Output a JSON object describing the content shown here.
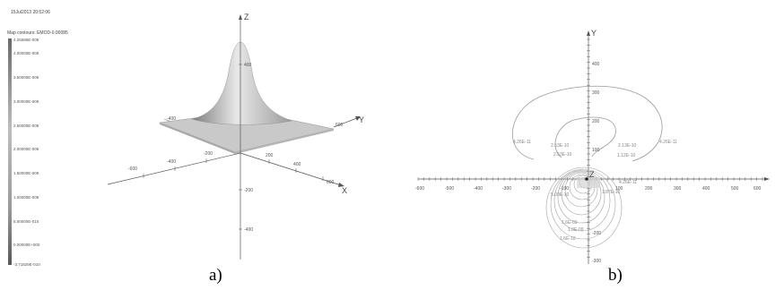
{
  "timestamp": "15Jul2013 20:52:06",
  "legend": {
    "title": "Map contours: EMOD-0.00085",
    "labels": [
      "4.25686E-009",
      "4.00000E-009",
      "3.50000E-009",
      "3.00000E-009",
      "2.50000E-009",
      "2.00000E-009",
      "1.50000E-009",
      "1.00000E-009",
      "5.00000E-010",
      "0.00000E+000",
      "-3.71829E-010"
    ]
  },
  "panel_a": {
    "caption": "a)",
    "axis_x": "X",
    "axis_y": "Y",
    "axis_z": "Z",
    "x_ticks": [
      "200",
      "400",
      "600"
    ],
    "neg_x_ticks": [
      "-200",
      "-400",
      "-600"
    ],
    "y_ticks": [
      "600"
    ],
    "neg_y_ticks": [
      "-200",
      "-400"
    ],
    "z_ticks": [
      "400"
    ],
    "neg_z_ticks": [
      "-200",
      "-400"
    ]
  },
  "panel_b": {
    "caption": "b)",
    "axis_y": "Y",
    "axis_z": "Z",
    "x_ticks": [
      "-600",
      "-500",
      "-400",
      "-300",
      "-200",
      "-100",
      "100",
      "200",
      "300",
      "400",
      "500",
      "600"
    ],
    "y_ticks": [
      "400",
      "300",
      "200",
      "100"
    ],
    "neg_y_ticks": [
      "-200",
      "-300"
    ],
    "contour_labels": [
      "4.26E-11",
      "2.53E-10",
      "4.26E-11",
      "2.53E-10",
      "2.13E-10",
      "1.12E-10",
      "1.87E-10",
      "4.26E-11",
      "5.00E-10",
      "1.6E-09",
      "1.0E-09",
      "1.6E-10"
    ]
  }
}
